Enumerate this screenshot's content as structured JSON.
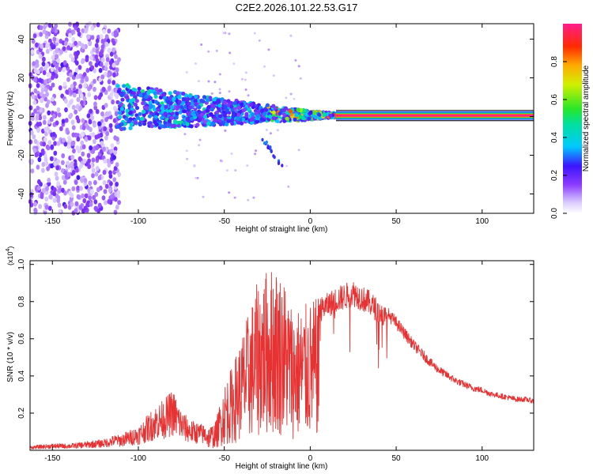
{
  "title": "C2E2.2026.101.22.53.G17",
  "colors": {
    "snr_line": "#e63232",
    "frame": "#000000"
  },
  "chart_data": [
    {
      "type": "heatmap",
      "xlabel": "Height of straight line (km)",
      "ylabel": "Frequency (Hz)",
      "xlim": [
        -163,
        130
      ],
      "ylim": [
        -50,
        48
      ],
      "xticks": [
        -150,
        -100,
        -50,
        0,
        50,
        100
      ],
      "yticks": [
        -40,
        -20,
        0,
        20,
        40
      ],
      "colorbar": {
        "label": "Normalized spectral amplitude",
        "range": [
          0,
          1
        ],
        "ticks": [
          "0.0",
          "0.2",
          "0.4",
          "0.6",
          "0.8"
        ],
        "tick_values": [
          0,
          0.2,
          0.4,
          0.6,
          0.8
        ]
      },
      "description": "Broadband noise (-163 to -112 km), dispersed signal from -112 to 15 km narrowing toward 0 Hz, steady carrier at ~0.5 Hz from 15 to 130 km",
      "carrier": {
        "x_start": 15,
        "x_end": 130,
        "frequency_hz": 0.5,
        "amplitude": 1.0
      }
    },
    {
      "type": "line",
      "xlabel": "Height of straight line (km)",
      "ylabel": "SNR (10 * v/v)",
      "y_scale_label": "(x10",
      "y_scale_exp": "4",
      "y_scale_close": ")",
      "xlim": [
        -163,
        130
      ],
      "ylim": [
        0,
        1.02
      ],
      "xticks": [
        -150,
        -100,
        -50,
        0,
        50,
        100
      ],
      "yticks": [
        0.2,
        0.4,
        0.6,
        0.8,
        1.0
      ],
      "ytick_labels": [
        "0.2",
        "0.4",
        "0.6",
        "0.8",
        "1.0"
      ],
      "series": [
        {
          "name": "SNR",
          "x": [
            -163,
            -150,
            -140,
            -130,
            -120,
            -110,
            -100,
            -90,
            -85,
            -80,
            -75,
            -70,
            -60,
            -55,
            -50,
            -45,
            -40,
            -35,
            -30,
            -25,
            -20,
            -15,
            -10,
            -5,
            0,
            5,
            10,
            15,
            20,
            25,
            30,
            35,
            40,
            45,
            50,
            55,
            60,
            65,
            70,
            75,
            80,
            85,
            90,
            95,
            100,
            105,
            110,
            115,
            120,
            125,
            130
          ],
          "envelope": [
            0.02,
            0.03,
            0.03,
            0.04,
            0.05,
            0.08,
            0.12,
            0.22,
            0.25,
            0.3,
            0.2,
            0.15,
            0.12,
            0.15,
            0.35,
            0.45,
            0.6,
            0.75,
            0.9,
            0.95,
            0.98,
            0.9,
            0.75,
            0.75,
            0.78,
            0.8,
            0.83,
            0.86,
            0.88,
            0.9,
            0.87,
            0.84,
            0.79,
            0.75,
            0.7,
            0.64,
            0.58,
            0.53,
            0.48,
            0.44,
            0.41,
            0.38,
            0.36,
            0.34,
            0.33,
            0.31,
            0.3,
            0.29,
            0.28,
            0.28,
            0.27
          ]
        }
      ]
    }
  ]
}
